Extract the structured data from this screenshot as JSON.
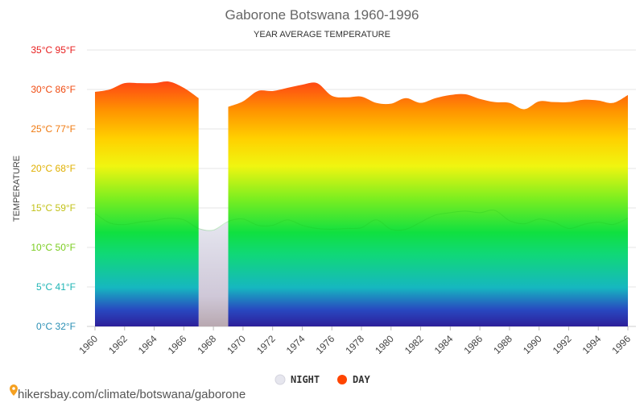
{
  "chart_data": {
    "type": "area",
    "title": "Gaborone Botswana 1960-1996",
    "subtitle": "YEAR AVERAGE TEMPERATURE",
    "ylabel": "TEMPERATURE",
    "xlabel": "",
    "ylim": [
      0,
      35
    ],
    "xlim": [
      1960,
      1996
    ],
    "grid": true,
    "legend_position": "bottom",
    "y_ticks": [
      {
        "value": 0,
        "label": "0°C 32°F",
        "color": "#2a8fb4"
      },
      {
        "value": 5,
        "label": "5°C 41°F",
        "color": "#1fb5b5"
      },
      {
        "value": 10,
        "label": "10°C 50°F",
        "color": "#7acc1f"
      },
      {
        "value": 15,
        "label": "15°C 59°F",
        "color": "#c2c21a"
      },
      {
        "value": 20,
        "label": "20°C 68°F",
        "color": "#e0b000"
      },
      {
        "value": 25,
        "label": "25°C 77°F",
        "color": "#f07a10"
      },
      {
        "value": 30,
        "label": "30°C 86°F",
        "color": "#f04a10"
      },
      {
        "value": 35,
        "label": "35°C 95°F",
        "color": "#e82020"
      }
    ],
    "x_ticks": [
      "1960",
      "1962",
      "1964",
      "1966",
      "1968",
      "1970",
      "1972",
      "1974",
      "1976",
      "1978",
      "1980",
      "1982",
      "1984",
      "1986",
      "1988",
      "1990",
      "1992",
      "1994",
      "1996"
    ],
    "x": [
      1960,
      1961,
      1962,
      1963,
      1964,
      1965,
      1966,
      1967,
      1968,
      1969,
      1970,
      1971,
      1972,
      1973,
      1974,
      1975,
      1976,
      1977,
      1978,
      1979,
      1980,
      1981,
      1982,
      1983,
      1984,
      1985,
      1986,
      1987,
      1988,
      1989,
      1990,
      1991,
      1992,
      1993,
      1994,
      1995,
      1996
    ],
    "series": [
      {
        "name": "DAY",
        "color": "#ff4500",
        "values": [
          29.7,
          30.0,
          30.8,
          30.8,
          30.8,
          31.0,
          30.2,
          28.9,
          null,
          27.8,
          28.5,
          29.8,
          29.8,
          30.2,
          30.6,
          30.8,
          29.2,
          29.0,
          29.1,
          28.3,
          28.2,
          28.9,
          28.3,
          28.9,
          29.3,
          29.4,
          28.8,
          28.4,
          28.3,
          27.5,
          28.5,
          28.4,
          28.4,
          28.7,
          28.6,
          28.3,
          29.3
        ]
      },
      {
        "name": "NIGHT",
        "color": "#e8e8ee",
        "values": [
          14.3,
          13.1,
          12.9,
          13.2,
          13.4,
          13.7,
          13.5,
          12.4,
          12.2,
          13.3,
          13.6,
          12.8,
          12.8,
          13.5,
          12.8,
          12.4,
          12.3,
          12.4,
          12.5,
          13.5,
          12.3,
          12.3,
          13.2,
          14.1,
          14.4,
          14.6,
          14.4,
          14.7,
          13.4,
          13.0,
          13.6,
          13.2,
          12.4,
          12.9,
          13.2,
          12.9,
          13.7
        ]
      }
    ]
  },
  "legend": {
    "night_label": "NIGHT",
    "day_label": "DAY"
  },
  "watermark": {
    "text": "hikersbay.com/climate/botswana/gaborone"
  }
}
